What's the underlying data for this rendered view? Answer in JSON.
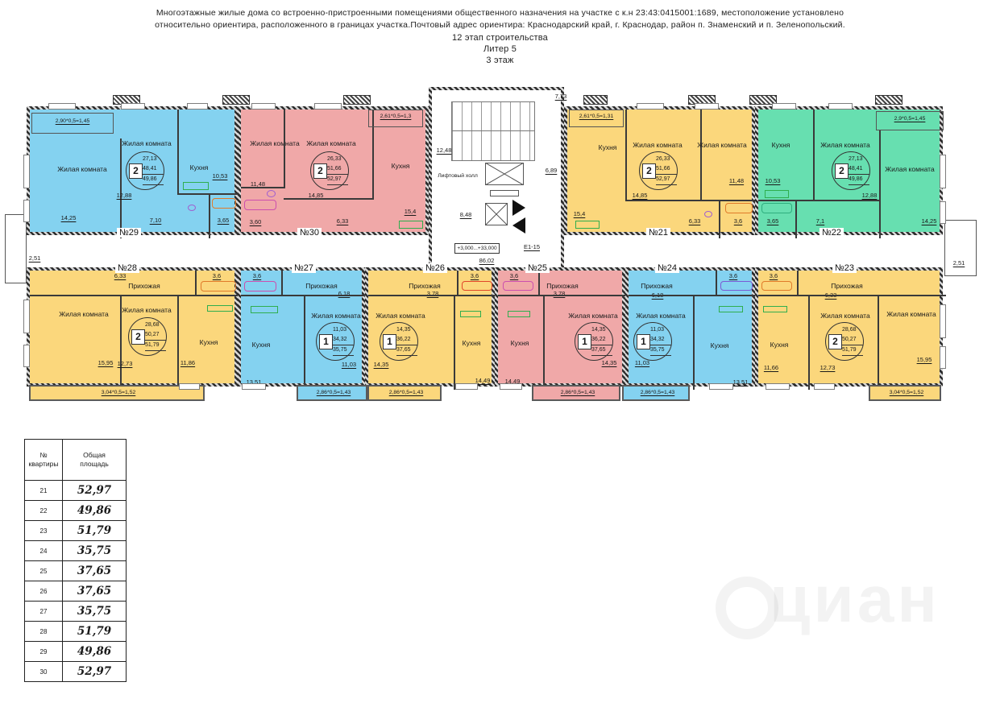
{
  "header": {
    "line1": "Многоэтажные жилые дома со встроенно-пристроенными помещениями общественного назначения на участке с к.н 23:43:0415001:1689, местоположение установлено",
    "line2": "относительно ориентира, расположенного в границах участка.Почтовый адрес ориентира: Краснодарский край, г. Краснодар, район п. Знаменский и п. Зеленопольский.",
    "line3": "12 этап строительства",
    "line4": "Литер 5",
    "line5": "3 этаж"
  },
  "plan": {
    "room_names": {
      "living": "Жилая комната",
      "kitchen": "Кухня",
      "hall": "Прихожая"
    },
    "labels": {
      "lift_hall": "Лифтовый холл",
      "stair_area": "12,48",
      "hall_area": "8,48",
      "elevation": "+3,000...+33,000",
      "stair_code": "Е1-15",
      "corridor_area": "86,02",
      "dim_left": "2,51",
      "dim_right": "2,51",
      "dim_top": "7,73",
      "dim_mid": "6,89"
    },
    "apartments": {
      "a29": {
        "num": "№29",
        "balcony": "2,90*0,5=1,45",
        "room1": "14,25",
        "room2": "12,88",
        "kitchen": "10,53",
        "corr": "7,10",
        "bath": "3,65",
        "badge": {
          "n": "2",
          "l1": "27,13",
          "l2": "48,41",
          "l3": "49,86"
        }
      },
      "a30": {
        "num": "№30",
        "balcony": "2,61*0,5=1,3",
        "room1": "11,48",
        "room2": "14,85",
        "kitchen": "15,4",
        "corr": "6,33",
        "bath": "3,60",
        "badge": {
          "n": "2",
          "l1": "26,33",
          "l2": "51,66",
          "l3": "52,97"
        }
      },
      "a21": {
        "num": "№21",
        "balcony": "2,61*0,5=1,31",
        "room1": "11,48",
        "room2": "14,85",
        "kitchen": "15,4",
        "corr": "6,33",
        "bath": "3,6",
        "badge": {
          "n": "2",
          "l1": "26,33",
          "l2": "51,66",
          "l3": "52,97"
        }
      },
      "a22": {
        "num": "№22",
        "balcony": "2,9*0,5=1,45",
        "room1": "14,25",
        "room2": "12,88",
        "kitchen": "10,53",
        "corr": "7,1",
        "bath": "3,65",
        "badge": {
          "n": "2",
          "l1": "27,13",
          "l2": "48,41",
          "l3": "49,86"
        }
      },
      "a28": {
        "num": "№28",
        "balcony": "3,04*0,5=1,52",
        "room1": "15,95",
        "room2": "12,73",
        "kitchen": "11,86",
        "hall": "6,33",
        "bath": "3,6",
        "badge": {
          "n": "2",
          "l1": "28,68",
          "l2": "50,27",
          "l3": "51,79"
        }
      },
      "a27": {
        "num": "№27",
        "balcony": "2,86*0,5=1,43",
        "room1": "11,03",
        "kitchen": "13,51",
        "hall": "6,18",
        "bath": "3,6",
        "badge": {
          "n": "1",
          "l1": "11,03",
          "l2": "34,32",
          "l3": "35,75"
        }
      },
      "a26": {
        "num": "№26",
        "balcony": "2,86*0,5=1,43",
        "room1": "14,35",
        "kitchen": "14,49",
        "hall": "3,78",
        "bath": "3,6",
        "badge": {
          "n": "1",
          "l1": "14,35",
          "l2": "36,22",
          "l3": "37,65"
        }
      },
      "a25": {
        "num": "№25",
        "balcony": "2,86*0,5=1,43",
        "room1": "14,35",
        "kitchen": "14,49",
        "hall": "3,78",
        "bath": "3,6",
        "badge": {
          "n": "1",
          "l1": "14,35",
          "l2": "36,22",
          "l3": "37,65"
        }
      },
      "a24": {
        "num": "№24",
        "balcony": "2,86*0,5=1,43",
        "room1": "11,03",
        "kitchen": "13,51",
        "hall": "6,18",
        "bath": "3,6",
        "badge": {
          "n": "1",
          "l1": "11,03",
          "l2": "34,32",
          "l3": "35,75"
        }
      },
      "a23": {
        "num": "№23",
        "balcony": "3,04*0,5=1,52",
        "room1": "15,95",
        "room2": "12,73",
        "kitchen": "11,66",
        "hall": "6,33",
        "bath": "3,6",
        "badge": {
          "n": "2",
          "l1": "28,68",
          "l2": "50,27",
          "l3": "51,79"
        }
      }
    }
  },
  "table": {
    "col1": "№\nквартиры",
    "col2": "Общая\nплощадь",
    "rows": [
      [
        "21",
        "52,97"
      ],
      [
        "22",
        "49,86"
      ],
      [
        "23",
        "51,79"
      ],
      [
        "24",
        "35,75"
      ],
      [
        "25",
        "37,65"
      ],
      [
        "26",
        "37,65"
      ],
      [
        "27",
        "35,75"
      ],
      [
        "28",
        "51,79"
      ],
      [
        "29",
        "49,86"
      ],
      [
        "30",
        "52,97"
      ]
    ]
  },
  "watermark": "циан",
  "colors": {
    "blue": "#84d2f0",
    "pink": "#f0a8a8",
    "yellow": "#fbd77c",
    "green": "#67dfb0",
    "wall": "#3a3a3a"
  }
}
